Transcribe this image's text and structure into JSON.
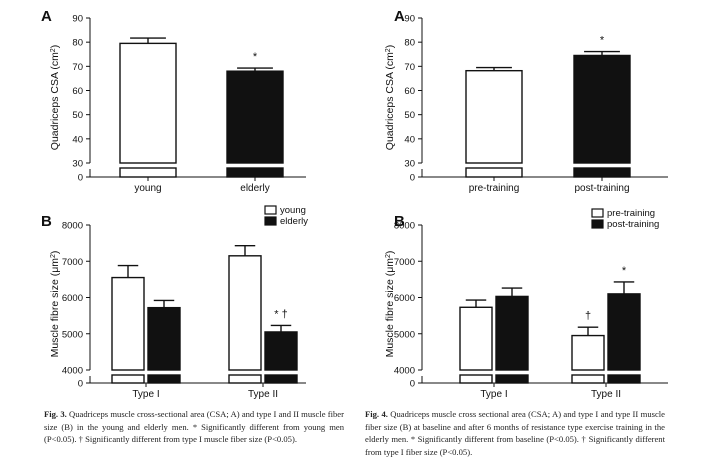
{
  "chart_data": [
    {
      "panel": "A",
      "type": "bar",
      "categories": [
        "young",
        "elderly"
      ],
      "values": [
        79.5,
        68.0
      ],
      "errors": [
        2.2,
        1.3
      ],
      "fills": [
        "#ffffff",
        "#111111"
      ],
      "markers": [
        "",
        "*"
      ],
      "ylabel_main": "Quadriceps CSA (cm",
      "ylabel_sup": "2",
      "ylabel_end": ")",
      "yticks": [
        0,
        30,
        40,
        50,
        60,
        70,
        80,
        90
      ],
      "ylim": [
        30,
        90
      ],
      "axis_break": true,
      "grid": false
    },
    {
      "panel": "A",
      "type": "bar",
      "categories": [
        "pre-training",
        "post-training"
      ],
      "values": [
        68.2,
        74.5
      ],
      "errors": [
        1.3,
        1.6
      ],
      "fills": [
        "#ffffff",
        "#111111"
      ],
      "markers": [
        "",
        "*"
      ],
      "ylabel_main": "Quadriceps CSA (cm",
      "ylabel_sup": "2",
      "ylabel_end": ")",
      "yticks": [
        0,
        30,
        40,
        50,
        60,
        70,
        80,
        90
      ],
      "ylim": [
        30,
        90
      ],
      "axis_break": true,
      "grid": false
    },
    {
      "panel": "B",
      "type": "bar",
      "categories": [
        "Type I",
        "Type II"
      ],
      "series": [
        {
          "name": "young",
          "color": "#ffffff",
          "values": [
            6550,
            7150
          ],
          "errors": [
            330,
            280
          ],
          "markers": [
            "",
            ""
          ]
        },
        {
          "name": "elderly",
          "color": "#111111",
          "values": [
            5720,
            5050
          ],
          "errors": [
            200,
            180
          ],
          "markers": [
            "",
            "* †"
          ]
        }
      ],
      "ylabel_main": "Muscle fibre size (μm",
      "ylabel_sup": "2",
      "ylabel_end": ")",
      "yticks": [
        0,
        4000,
        5000,
        6000,
        7000,
        8000
      ],
      "ylim": [
        4000,
        8000
      ],
      "legend_position": "top-right",
      "axis_break": true,
      "grid": false
    },
    {
      "panel": "B",
      "type": "bar",
      "categories": [
        "Type I",
        "Type II"
      ],
      "series": [
        {
          "name": "pre-training",
          "color": "#ffffff",
          "values": [
            5730,
            4950
          ],
          "errors": [
            200,
            230
          ],
          "markers": [
            "",
            "†"
          ]
        },
        {
          "name": "post-training",
          "color": "#111111",
          "values": [
            6030,
            6100
          ],
          "errors": [
            230,
            330
          ],
          "markers": [
            "",
            "*"
          ]
        }
      ],
      "ylabel_main": "Muscle fibre size (μm",
      "ylabel_sup": "2",
      "ylabel_end": ")",
      "yticks": [
        0,
        4000,
        5000,
        6000,
        7000,
        8000
      ],
      "ylim": [
        4000,
        8000
      ],
      "legend_position": "top-right",
      "axis_break": true,
      "grid": false
    }
  ],
  "captions": {
    "fig3_label": "Fig. 3.",
    "fig3_text": "Quadriceps muscle cross-sectional area (CSA; A) and type I and II muscle fiber size (B) in the young and elderly men. * Significantly different from young men (P<0.05). † Significantly different from type I muscle fiber size (P<0.05).",
    "fig4_label": "Fig. 4.",
    "fig4_text": "Quadriceps muscle cross sectional area (CSA; A) and type I and type II muscle fiber size (B) at baseline and after 6 months of resistance type exercise training in the elderly men. * Significantly different from baseline (P<0.05). † Significantly different from type I fiber size (P<0.05)."
  }
}
